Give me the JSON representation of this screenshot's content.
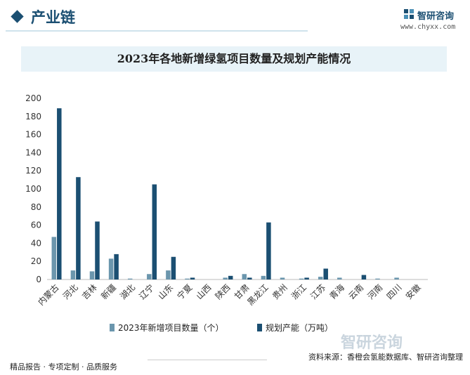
{
  "header": {
    "section_title": "产业链",
    "logo_name": "智研咨询",
    "logo_url": "www.chyxx.com",
    "bottom_logo": "智研咨询"
  },
  "chart_data": {
    "type": "bar",
    "title": "2023年各地新增绿氢项目数量及规划产能情况",
    "categories": [
      "内蒙古",
      "河北",
      "吉林",
      "新疆",
      "湖北",
      "辽宁",
      "山东",
      "宁夏",
      "山西",
      "陕西",
      "甘肃",
      "黑龙江",
      "贵州",
      "浙江",
      "江苏",
      "青海",
      "云南",
      "河南",
      "四川",
      "安徽"
    ],
    "series": [
      {
        "name": "2023年新增项目数量（个）",
        "color": "#6b96ad",
        "values": [
          47,
          10,
          9,
          23,
          1,
          6,
          10,
          1,
          0,
          2,
          6,
          4,
          2,
          1,
          3,
          2,
          0,
          1,
          2,
          0
        ]
      },
      {
        "name": "规划产能（万吨）",
        "color": "#1b4f72",
        "values": [
          189,
          113,
          64,
          28,
          0,
          105,
          25,
          2,
          0,
          4,
          2,
          63,
          0,
          2,
          12,
          0,
          5,
          0,
          0,
          0
        ]
      }
    ],
    "ylim": [
      0,
      200
    ],
    "yticks": [
      0,
      20,
      40,
      60,
      80,
      100,
      120,
      140,
      160,
      180,
      200
    ],
    "grid": false,
    "legend": "bottom"
  },
  "footer": {
    "left": "精品报告 · 专项定制 · 品质服务",
    "source": "资料来源：香橙会氢能数据库、智研咨询整理"
  }
}
